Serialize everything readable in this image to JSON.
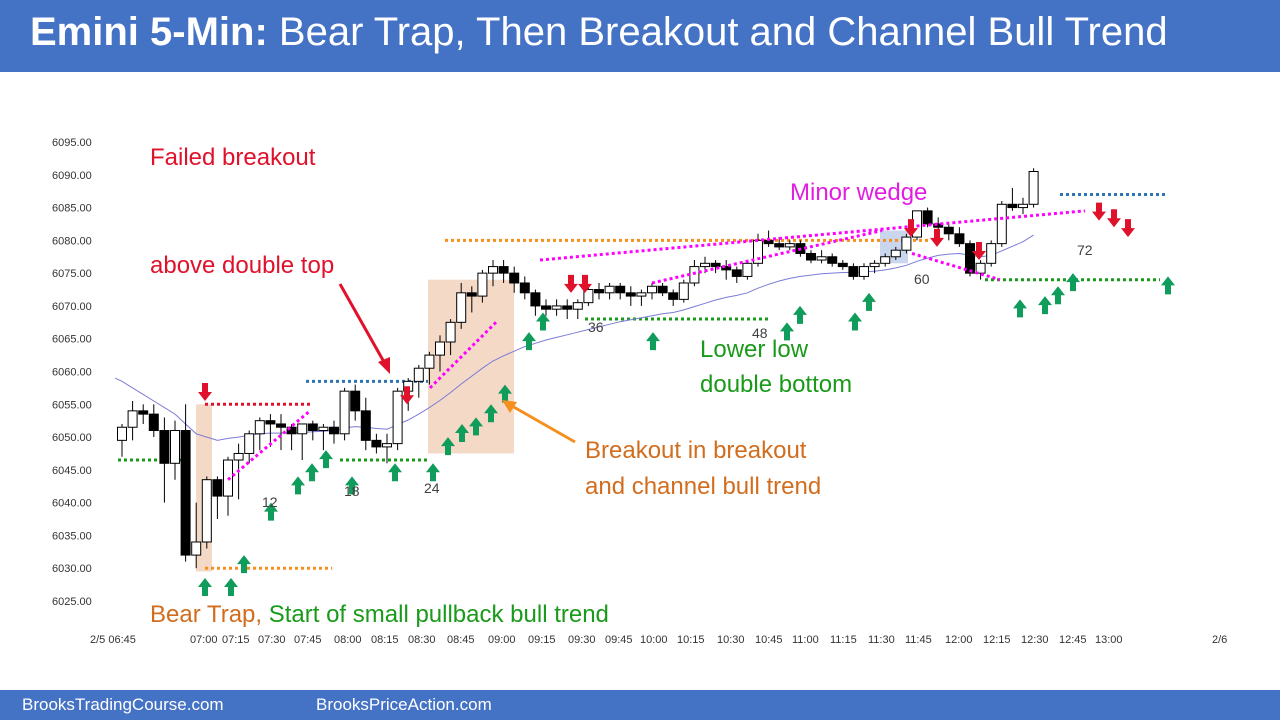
{
  "header": {
    "title_bold": "Emini 5-Min:",
    "title_rest": " Bear Trap, Then Breakout and Channel Bull Trend"
  },
  "footer": {
    "left": "BrooksTradingCourse.com",
    "right": "BrooksPriceAction.com"
  },
  "colors": {
    "header": "#4472c4",
    "bear_arrow": "#e0112b",
    "bull_arrow": "#109c5a",
    "ema": "#7b7bd6",
    "wedge": "#ff00ff",
    "orange": "#f5901e",
    "green_line": "#1a9a1a",
    "blue_line": "#2e75b6",
    "shade": "#f4d9c6"
  },
  "chart_data": {
    "type": "candlestick",
    "ylim": [
      6025,
      6095
    ],
    "yticks": [
      "6095.00",
      "6090.00",
      "6085.00",
      "6080.00",
      "6075.00",
      "6070.00",
      "6065.00",
      "6060.00",
      "6055.00",
      "6050.00",
      "6045.00",
      "6040.00",
      "6035.00",
      "6030.00",
      "6025.00"
    ],
    "xticks": [
      "2/5 06:45",
      "07:00",
      "07:15",
      "07:30",
      "07:45",
      "08:00",
      "08:15",
      "08:30",
      "08:45",
      "09:00",
      "09:15",
      "09:30",
      "09:45",
      "10:00",
      "10:15",
      "10:30",
      "10:45",
      "11:00",
      "11:15",
      "11:30",
      "11:45",
      "12:00",
      "12:15",
      "12:30",
      "12:45",
      "13:00",
      "2/6"
    ],
    "candles": [
      [
        6049.5,
        6052,
        6047,
        6051.5
      ],
      [
        6051.5,
        6055.5,
        6049.5,
        6054
      ],
      [
        6054,
        6055,
        6052,
        6053.5
      ],
      [
        6053.5,
        6055,
        6050,
        6051
      ],
      [
        6051,
        6053,
        6040,
        6046
      ],
      [
        6046,
        6052.5,
        6043.5,
        6051
      ],
      [
        6051,
        6055,
        6031,
        6032
      ],
      [
        6032,
        6040,
        6030,
        6034
      ],
      [
        6034,
        6044,
        6033,
        6043.5
      ],
      [
        6043.5,
        6044,
        6037.5,
        6041
      ],
      [
        6041,
        6047,
        6038,
        6046.5
      ],
      [
        6046.5,
        6049,
        6040.5,
        6047.5
      ],
      [
        6047.5,
        6051,
        6046,
        6050.5
      ],
      [
        6050.5,
        6053,
        6048,
        6052.5
      ],
      [
        6052.5,
        6053.5,
        6048.5,
        6052
      ],
      [
        6052,
        6053.5,
        6048,
        6051.5
      ],
      [
        6051.5,
        6052,
        6048,
        6050.5
      ],
      [
        6050.5,
        6052,
        6046.5,
        6052
      ],
      [
        6052,
        6052.5,
        6049.5,
        6051
      ],
      [
        6051,
        6052,
        6048,
        6051.5
      ],
      [
        6051.5,
        6052.5,
        6049,
        6050.5
      ],
      [
        6050.5,
        6057.5,
        6049.5,
        6057
      ],
      [
        6057,
        6058,
        6052.5,
        6054
      ],
      [
        6054,
        6056,
        6048,
        6049.5
      ],
      [
        6049.5,
        6050.5,
        6047.5,
        6048.5
      ],
      [
        6048.5,
        6050.5,
        6046,
        6049
      ],
      [
        6049,
        6057.5,
        6048,
        6057
      ],
      [
        6057,
        6059,
        6054,
        6058.5
      ],
      [
        6058.5,
        6061,
        6056,
        6060.5
      ],
      [
        6060.5,
        6063,
        6058,
        6062.5
      ],
      [
        6062.5,
        6065.5,
        6060,
        6064.5
      ],
      [
        6064.5,
        6068,
        6062.5,
        6067.5
      ],
      [
        6067.5,
        6073.5,
        6066.5,
        6072
      ],
      [
        6072,
        6073,
        6069,
        6071.5
      ],
      [
        6071.5,
        6075.5,
        6070.5,
        6075
      ],
      [
        6075,
        6077,
        6073,
        6076
      ],
      [
        6076,
        6077,
        6073.5,
        6075
      ],
      [
        6075,
        6076,
        6072,
        6073.5
      ],
      [
        6073.5,
        6074.5,
        6071,
        6072
      ],
      [
        6072,
        6072.5,
        6068.5,
        6070
      ],
      [
        6070,
        6071,
        6068.5,
        6069.5
      ],
      [
        6069.5,
        6071,
        6068.5,
        6070
      ],
      [
        6070,
        6071,
        6068,
        6069.5
      ],
      [
        6069.5,
        6071,
        6068,
        6070.5
      ],
      [
        6070.5,
        6073,
        6070,
        6072.5
      ],
      [
        6072.5,
        6073.5,
        6071,
        6072
      ],
      [
        6072,
        6073.5,
        6071,
        6073
      ],
      [
        6073,
        6073.5,
        6071,
        6072
      ],
      [
        6072,
        6073,
        6070,
        6071.5
      ],
      [
        6071.5,
        6072.5,
        6070,
        6072
      ],
      [
        6072,
        6073.5,
        6071,
        6073
      ],
      [
        6073,
        6073.5,
        6071.5,
        6072
      ],
      [
        6072,
        6072.5,
        6070,
        6071
      ],
      [
        6071,
        6074,
        6070.5,
        6073.5
      ],
      [
        6073.5,
        6077,
        6073,
        6076
      ],
      [
        6076,
        6077.5,
        6075,
        6076.5
      ],
      [
        6076.5,
        6077,
        6075,
        6076
      ],
      [
        6076,
        6077,
        6074,
        6075.5
      ],
      [
        6075.5,
        6076,
        6073.5,
        6074.5
      ],
      [
        6074.5,
        6077,
        6074,
        6076.5
      ],
      [
        6076.5,
        6081,
        6076,
        6080
      ],
      [
        6080,
        6081.5,
        6079,
        6079.5
      ],
      [
        6079.5,
        6080.5,
        6078.5,
        6079
      ],
      [
        6079,
        6080,
        6078.5,
        6079.5
      ],
      [
        6079.5,
        6080,
        6077.5,
        6078
      ],
      [
        6078,
        6078.5,
        6076.5,
        6077
      ],
      [
        6077,
        6078.5,
        6076.5,
        6077.5
      ],
      [
        6077.5,
        6078,
        6076,
        6076.5
      ],
      [
        6076.5,
        6077,
        6075.5,
        6076
      ],
      [
        6076,
        6076.5,
        6074,
        6074.5
      ],
      [
        6074.5,
        6076.5,
        6074,
        6076
      ],
      [
        6076,
        6077,
        6075,
        6076.5
      ],
      [
        6076.5,
        6078,
        6076,
        6077.5
      ],
      [
        6077.5,
        6079,
        6077,
        6078.5
      ],
      [
        6078.5,
        6081,
        6078,
        6080.5
      ],
      [
        6080.5,
        6084.5,
        6080,
        6084.5
      ],
      [
        6084.5,
        6085,
        6082,
        6082.5
      ],
      [
        6082.5,
        6083.5,
        6081.5,
        6082
      ],
      [
        6082,
        6082.5,
        6080,
        6081
      ],
      [
        6081,
        6082,
        6079,
        6079.5
      ],
      [
        6079.5,
        6080,
        6074.5,
        6075
      ],
      [
        6075,
        6077,
        6074,
        6076.5
      ],
      [
        6076.5,
        6080,
        6076,
        6079.5
      ],
      [
        6079.5,
        6086,
        6079,
        6085.5
      ],
      [
        6085.5,
        6088,
        6084.5,
        6085
      ],
      [
        6085,
        6086.5,
        6084,
        6085.5
      ],
      [
        6085.5,
        6091,
        6085,
        6090.5
      ]
    ],
    "ema20": [
      6058.5,
      6057.5,
      6056.5,
      6055.5,
      6054.5,
      6053.5,
      6052,
      6050.5,
      6050,
      6049.5,
      6049.8,
      6050,
      6050.3,
      6050.5,
      6050.6,
      6050.6,
      6050.6,
      6050.7,
      6050.8,
      6050.9,
      6051,
      6051.4,
      6051.6,
      6051.5,
      6051.3,
      6051.2,
      6051.9,
      6052.6,
      6053.5,
      6054.5,
      6055.6,
      6056.8,
      6058.1,
      6059.3,
      6060.5,
      6061.6,
      6062.4,
      6063.1,
      6063.8,
      6064.3,
      6064.8,
      6065.2,
      6065.6,
      6066,
      6066.4,
      6066.8,
      6067.2,
      6067.6,
      6067.9,
      6068.2,
      6068.5,
      6068.8,
      6069,
      6069.4,
      6069.9,
      6070.4,
      6070.9,
      6071.3,
      6071.6,
      6072,
      6072.7,
      6073.3,
      6073.8,
      6074.2,
      6074.5,
      6074.7,
      6074.9,
      6075,
      6075.1,
      6075.1,
      6075.2,
      6075.3,
      6075.5,
      6075.8,
      6076.2,
      6076.8,
      6077.3,
      6077.7,
      6077.9,
      6078,
      6077.7,
      6077.5,
      6077.7,
      6078.4,
      6079.1,
      6079.8,
      6080.8
    ]
  },
  "bar_numbers": [
    {
      "label": "12",
      "i": 12
    },
    {
      "label": "18",
      "i": 18
    },
    {
      "label": "24",
      "i": 24
    },
    {
      "label": "36",
      "i": 36
    },
    {
      "label": "48",
      "i": 48
    },
    {
      "label": "60",
      "i": 60
    },
    {
      "label": "72",
      "i": 72
    }
  ],
  "annotations": {
    "failed_breakout_1": "Failed breakout",
    "failed_breakout_2": "above double top",
    "minor_wedge": "Minor wedge",
    "lower_low_1": "Lower low",
    "lower_low_2": "double bottom",
    "breakout_1": "Breakout in breakout",
    "breakout_2": "and channel bull trend",
    "bear_trap": "Bear Trap,",
    "bull_start": " Start of small pullback bull trend"
  }
}
